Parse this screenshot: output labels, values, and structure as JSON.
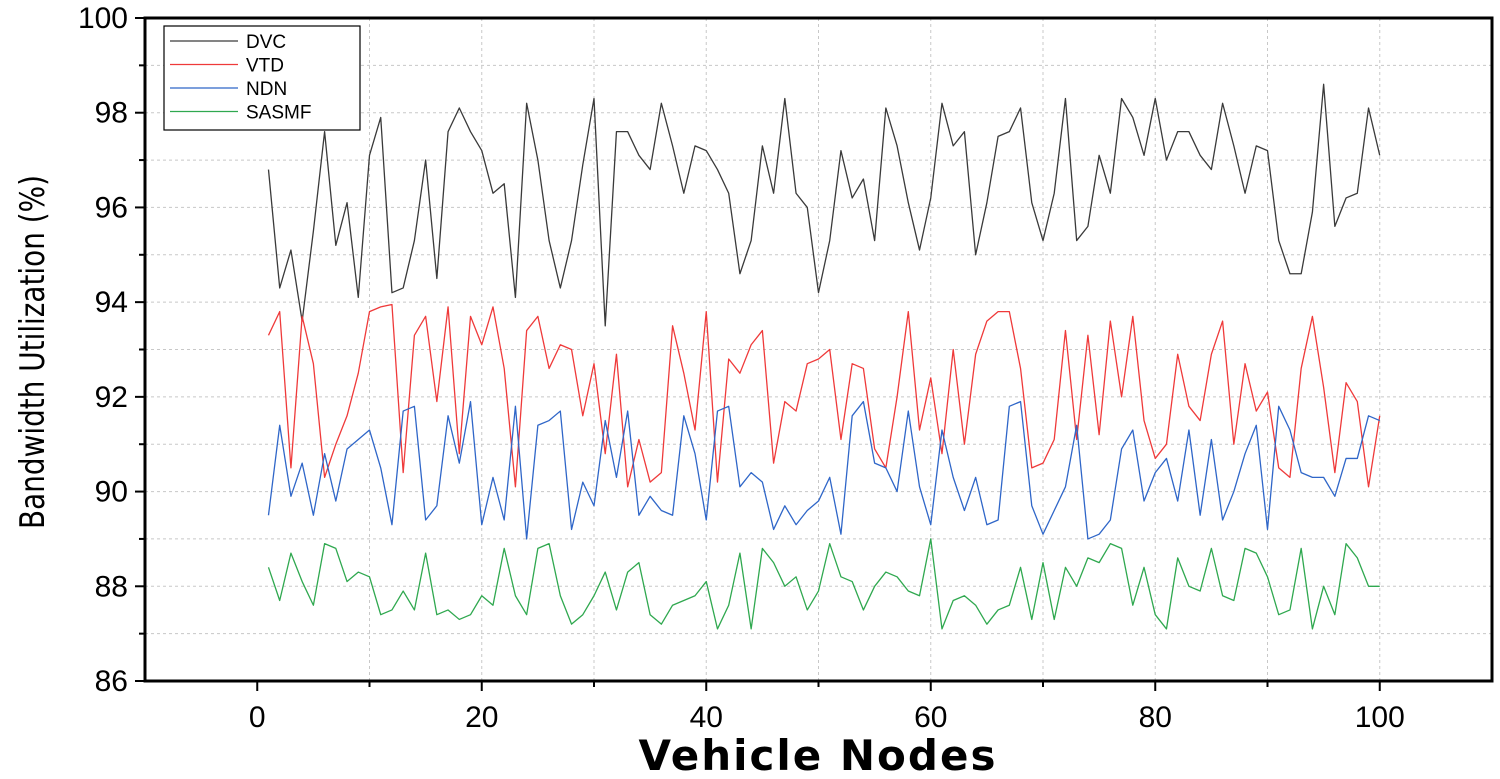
{
  "chart_data": {
    "type": "line",
    "title": "",
    "xlabel": "Vehicle Nodes",
    "ylabel": "Bandwidth Utilization (%)",
    "xlim": [
      -10,
      110
    ],
    "ylim": [
      86,
      100
    ],
    "xticks": [
      0,
      20,
      40,
      60,
      80,
      100
    ],
    "yticks": [
      86,
      88,
      90,
      92,
      94,
      96,
      98,
      100
    ],
    "grid": true,
    "legend_position": "top-left",
    "x": [
      1,
      2,
      3,
      4,
      5,
      6,
      7,
      8,
      9,
      10,
      11,
      12,
      13,
      14,
      15,
      16,
      17,
      18,
      19,
      20,
      21,
      22,
      23,
      24,
      25,
      26,
      27,
      28,
      29,
      30,
      31,
      32,
      33,
      34,
      35,
      36,
      37,
      38,
      39,
      40,
      41,
      42,
      43,
      44,
      45,
      46,
      47,
      48,
      49,
      50,
      51,
      52,
      53,
      54,
      55,
      56,
      57,
      58,
      59,
      60,
      61,
      62,
      63,
      64,
      65,
      66,
      67,
      68,
      69,
      70,
      71,
      72,
      73,
      74,
      75,
      76,
      77,
      78,
      79,
      80,
      81,
      82,
      83,
      84,
      85,
      86,
      87,
      88,
      89,
      90,
      91,
      92,
      93,
      94,
      95,
      96,
      97,
      98,
      99,
      100
    ],
    "series": [
      {
        "name": "DVC",
        "color": "#3a3a3a",
        "values": [
          96.8,
          94.3,
          95.1,
          93.6,
          95.5,
          97.6,
          95.2,
          96.1,
          94.1,
          97.1,
          97.9,
          94.2,
          94.3,
          95.3,
          97.0,
          94.5,
          97.6,
          98.1,
          97.6,
          97.2,
          96.3,
          96.5,
          94.1,
          98.2,
          97.0,
          95.3,
          94.3,
          95.3,
          96.9,
          98.3,
          93.5,
          97.6,
          97.6,
          97.1,
          96.8,
          98.2,
          97.3,
          96.3,
          97.3,
          97.2,
          96.8,
          96.3,
          94.6,
          95.3,
          97.3,
          96.3,
          98.3,
          96.3,
          96.0,
          94.2,
          95.3,
          97.2,
          96.2,
          96.6,
          95.3,
          98.1,
          97.3,
          96.1,
          95.1,
          96.2,
          98.2,
          97.3,
          97.6,
          95.0,
          96.1,
          97.5,
          97.6,
          98.1,
          96.1,
          95.3,
          96.3,
          98.3,
          95.3,
          95.6,
          97.1,
          96.3,
          98.3,
          97.9,
          97.1,
          98.3,
          97.0,
          97.6,
          97.6,
          97.1,
          96.8,
          98.2,
          97.3,
          96.3,
          97.3,
          97.2,
          95.3,
          94.6,
          94.6,
          95.9,
          98.6,
          95.6,
          96.2,
          96.3,
          98.1,
          97.1
        ]
      },
      {
        "name": "VTD",
        "color": "#ef3a3a",
        "values": [
          93.3,
          93.8,
          90.5,
          93.7,
          92.7,
          90.3,
          91.0,
          91.6,
          92.5,
          93.8,
          93.9,
          93.95,
          90.4,
          93.3,
          93.7,
          91.9,
          93.9,
          90.8,
          93.7,
          93.1,
          93.9,
          92.6,
          90.1,
          93.4,
          93.7,
          92.6,
          93.1,
          93.0,
          91.6,
          92.7,
          90.8,
          92.9,
          90.1,
          91.1,
          90.2,
          90.4,
          93.5,
          92.5,
          91.3,
          93.8,
          90.2,
          92.8,
          92.5,
          93.1,
          93.4,
          90.6,
          91.9,
          91.7,
          92.7,
          92.8,
          93.0,
          91.1,
          92.7,
          92.6,
          90.9,
          90.5,
          92.0,
          93.8,
          91.3,
          92.4,
          90.8,
          93.0,
          91.0,
          92.9,
          93.6,
          93.8,
          93.8,
          92.6,
          90.5,
          90.6,
          91.1,
          93.4,
          91.1,
          93.3,
          91.2,
          93.6,
          92.0,
          93.7,
          91.5,
          90.7,
          91.0,
          92.9,
          91.8,
          91.5,
          92.9,
          93.6,
          91.0,
          92.7,
          91.7,
          92.1,
          90.5,
          90.3,
          92.6,
          93.7,
          92.2,
          90.4,
          92.3,
          91.9,
          90.1,
          91.6
        ]
      },
      {
        "name": "NDN",
        "color": "#2f66c8",
        "values": [
          89.5,
          91.4,
          89.9,
          90.6,
          89.5,
          90.8,
          89.8,
          90.9,
          91.1,
          91.3,
          90.5,
          89.3,
          91.7,
          91.8,
          89.4,
          89.7,
          91.6,
          90.6,
          91.9,
          89.3,
          90.3,
          89.4,
          91.8,
          89.0,
          91.4,
          91.5,
          91.7,
          89.2,
          90.2,
          89.7,
          91.5,
          90.3,
          91.7,
          89.5,
          89.9,
          89.6,
          89.5,
          91.6,
          90.8,
          89.4,
          91.7,
          91.8,
          90.1,
          90.4,
          90.2,
          89.2,
          89.7,
          89.3,
          89.6,
          89.8,
          90.3,
          89.1,
          91.6,
          91.9,
          90.6,
          90.5,
          90.0,
          91.7,
          90.1,
          89.3,
          91.3,
          90.3,
          89.6,
          90.3,
          89.3,
          89.4,
          91.8,
          91.9,
          89.7,
          89.1,
          89.6,
          90.1,
          91.4,
          89.0,
          89.1,
          89.4,
          90.9,
          91.3,
          89.8,
          90.4,
          90.7,
          89.8,
          91.3,
          89.5,
          91.1,
          89.4,
          90.0,
          90.8,
          91.4,
          89.2,
          91.8,
          91.3,
          90.4,
          90.3,
          90.3,
          89.9,
          90.7,
          90.7,
          91.6,
          91.5
        ]
      },
      {
        "name": "SASMF",
        "color": "#2fa84f",
        "values": [
          88.4,
          87.7,
          88.7,
          88.1,
          87.6,
          88.9,
          88.8,
          88.1,
          88.3,
          88.2,
          87.4,
          87.5,
          87.9,
          87.5,
          88.7,
          87.4,
          87.5,
          87.3,
          87.4,
          87.8,
          87.6,
          88.8,
          87.8,
          87.4,
          88.8,
          88.9,
          87.8,
          87.2,
          87.4,
          87.8,
          88.3,
          87.5,
          88.3,
          88.5,
          87.4,
          87.2,
          87.6,
          87.7,
          87.8,
          88.1,
          87.1,
          87.6,
          88.7,
          87.1,
          88.8,
          88.5,
          88.0,
          88.2,
          87.5,
          87.9,
          88.9,
          88.2,
          88.1,
          87.5,
          88.0,
          88.3,
          88.2,
          87.9,
          87.8,
          89.0,
          87.1,
          87.7,
          87.8,
          87.6,
          87.2,
          87.5,
          87.6,
          88.4,
          87.3,
          88.5,
          87.3,
          88.4,
          88.0,
          88.6,
          88.5,
          88.9,
          88.8,
          87.6,
          88.4,
          87.4,
          87.1,
          88.6,
          88.0,
          87.9,
          88.8,
          87.8,
          87.7,
          88.8,
          88.7,
          88.2,
          87.4,
          87.5,
          88.8,
          87.1,
          88.0,
          87.4,
          88.9,
          88.6,
          88.0,
          88.0
        ]
      }
    ]
  }
}
